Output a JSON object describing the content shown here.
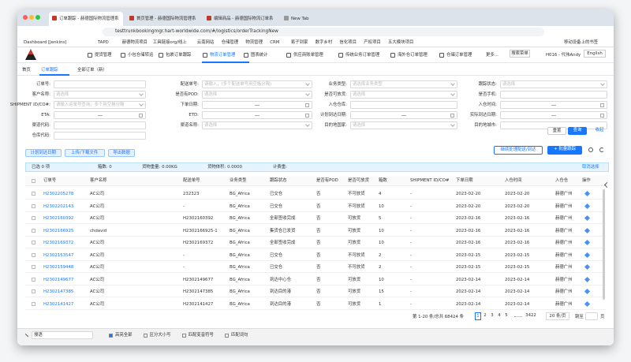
{
  "browser": {
    "tabs": [
      "订单跟踪 - 赫德国际物流管理系统",
      "首页管理 - 赫德国际物流管理系统",
      "编辑商品 - 赫德国际物流订单系统",
      "New Tab"
    ],
    "url": "testtrunkbookingmgr.hart-worldwide.com/#/logistics/orderTrackingNew",
    "bookmarks": [
      "Dashboard [Jenkins]",
      "TAPD",
      "赫德物流项目",
      "工具链接org/线上",
      "云南网站",
      "仓储管理",
      "物流管理",
      "CRM",
      "易子到家",
      "数字乡村",
      "信化项目",
      "产权项目",
      "五大模块项目"
    ],
    "mobile_bookmarks": "移动设备上的书签"
  },
  "nav": {
    "items": [
      "提货管理",
      "小包仓储转运",
      "包裹订单跟踪",
      "物流订单管理",
      "图表统计",
      "供应商账单管理",
      "传统业务订单管理",
      "海外仓订单管理",
      "仓储订单管理",
      "更多..."
    ],
    "search_menu": "搜索菜单",
    "user": "H016 - 代伟Andy",
    "language": "English"
  },
  "page_tabs": [
    "首页",
    "订单跟踪",
    "全部订单（新）"
  ],
  "filters": [
    [
      {
        "label": "订单号:"
      },
      {
        "label": "客户名称:",
        "placeholder": "请选择"
      },
      {
        "label": "SHIPMENT ID/CO#:",
        "placeholder": "请输入运单号查询，多个用空格分隔"
      },
      {
        "label": "ETA:"
      },
      {
        "label": "渠道代码:"
      },
      {
        "label": "仓库代码:"
      }
    ],
    [
      {
        "label": "配送单号:",
        "placeholder": "请输入，(多个配送单号用空格分隔)"
      },
      {
        "label": "是否有POD:",
        "placeholder": "请选择"
      },
      {
        "label": "下单日期:"
      },
      {
        "label": "ETD:"
      },
      {
        "label": "渠道名称:",
        "placeholder": "请选择"
      }
    ],
    [
      {
        "label": "业务类型:",
        "placeholder": "请选择业务类型"
      },
      {
        "label": "是否可放货:",
        "placeholder": "请选择"
      },
      {
        "label": "入仓仓库:"
      },
      {
        "label": "计划到达日期:"
      },
      {
        "label": "目的地国家:",
        "placeholder": "请选择"
      }
    ],
    [
      {
        "label": "跟踪状态:",
        "placeholder": "请选择"
      },
      {
        "label": "是否手机:"
      },
      {
        "label": "入仓时间:"
      },
      {
        "label": "实际到达日期:"
      },
      {
        "label": "目的地城市:"
      }
    ]
  ],
  "filter_buttons": [
    "重置",
    "查询",
    "收起"
  ],
  "toolbar": {
    "left": [
      "计划到达日期",
      "上传/下载文件",
      "导出数据"
    ],
    "right": [
      "继续处理配送/到达",
      "+ 批量跟踪"
    ]
  },
  "summary": {
    "selected": "已选 0 项",
    "boxes": "箱数: 0",
    "weight": "货物重量: 0.00KG",
    "volume": "货物体积: 0.0000",
    "charge": "计费重:",
    "cancel": "取消选择"
  },
  "table": {
    "headers": [
      "订单号",
      "客户名称",
      "配送单号",
      "业务类型",
      "跟踪状态",
      "是否有POD",
      "是否可放货",
      "箱数",
      "SHIPMENT ID/CO#",
      "下单日期",
      "入仓时间",
      "入仓仓",
      "操作"
    ],
    "rows": [
      [
        "H2302205278",
        "AC公司",
        "232323",
        "BG_Africa",
        "已交仓",
        "否",
        "不可放货",
        "4",
        "-",
        "2023-02-20",
        "2023-02-20",
        "赫德广州"
      ],
      [
        "H2302202143",
        "AC公司",
        "-",
        "BG_Africa",
        "已交仓",
        "否",
        "不可放货",
        "10",
        "-",
        "2023-02-20",
        "2023-02-20",
        "赫德广州"
      ],
      [
        "H2302160392",
        "AC公司",
        "H2302160392",
        "BG_Africa",
        "全部签收完成",
        "否",
        "可放货",
        "5",
        "-",
        "2023-02-16",
        "2023-02-16",
        "赫德广州"
      ],
      [
        "H2302166925",
        "chdavid",
        "H2302166925-1",
        "BG_Africa",
        "集货仓已发货",
        "否",
        "可放货",
        "10",
        "-",
        "2023-02-16",
        "2023-02-16",
        "赫德广州"
      ],
      [
        "H2302169372",
        "AC公司",
        "H2302169372",
        "BG_Africa",
        "全部签收完成",
        "否",
        "可放货",
        "10",
        "-",
        "2023-02-16",
        "2023-02-16",
        "赫德广州"
      ],
      [
        "H2302153547",
        "AC公司",
        "-",
        "BG_Africa",
        "已交仓",
        "否",
        "不可放货",
        "2",
        "-",
        "2023-02-15",
        "2023-02-15",
        "赫德广州"
      ],
      [
        "H2302159448",
        "AC公司",
        "-",
        "BG_Africa",
        "已交仓",
        "否",
        "不可放货",
        "2",
        "-",
        "2023-02-15",
        "2023-02-15",
        "赫德广州"
      ],
      [
        "H2302149677",
        "AC公司",
        "H2302149677",
        "BG_Africa",
        "到达中心仓",
        "否",
        "可放货",
        "10",
        "-",
        "2023-02-14",
        "2023-02-14",
        "赫德广州"
      ],
      [
        "H2302147385",
        "AC公司",
        "H2302147385",
        "BG_Africa",
        "到达目的港",
        "否",
        "可放货",
        "15",
        "-",
        "2023-02-14",
        "2023-02-14",
        "赫德广州"
      ],
      [
        "H2302141427",
        "AC公司",
        "H2302141427",
        "BG_Africa",
        "到达目的港",
        "否",
        "可放货",
        "1",
        "-",
        "2023-02-14",
        "2023-02-14",
        "赫德广州"
      ]
    ]
  },
  "pagination": {
    "total": "第 1-20 条/总共 68424 条",
    "pages": [
      "1",
      "2",
      "3",
      "4",
      "5",
      "3422"
    ],
    "page_size": "20 条/页",
    "jump": "跳至",
    "page_unit": "页"
  },
  "find_bar": {
    "query": "搜语",
    "options": [
      "高亮全部",
      "区分大小写",
      "匹配变音符号",
      "匹配词句"
    ]
  }
}
